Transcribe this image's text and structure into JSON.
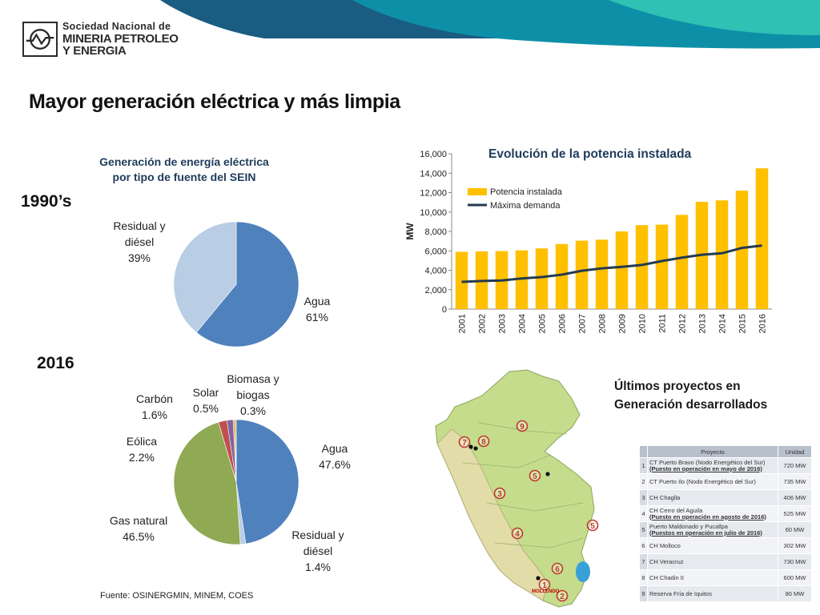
{
  "header": {
    "logo_line1": "Sociedad Nacional de",
    "logo_line2": "MINERIA PETROLEO",
    "logo_line3": "Y ENERGIA",
    "swoosh_colors": [
      "#1a5c82",
      "#0e8fa8",
      "#2fc1b4"
    ]
  },
  "title": "Mayor generación eléctrica y más limpia",
  "pie_section": {
    "title_line1": "Generación de energía eléctrica",
    "title_line2": "por tipo de fuente del SEIN",
    "era_1990": "1990’s",
    "era_2016": "2016"
  },
  "chart_data": [
    {
      "type": "pie",
      "title": "1990’s",
      "slices": [
        {
          "label": "Agua",
          "value": 61,
          "display": "61%",
          "color": "#4f81bd"
        },
        {
          "label": "Residual y diésel",
          "value": 39,
          "display": "39%",
          "color": "#b9cde5"
        }
      ]
    },
    {
      "type": "pie",
      "title": "2016",
      "slices": [
        {
          "label": "Agua",
          "value": 47.6,
          "display": "47.6%",
          "color": "#4f81bd"
        },
        {
          "label": "Residual y diésel",
          "value": 1.4,
          "display": "1.4%",
          "color": "#b9cde5"
        },
        {
          "label": "Gas natural",
          "value": 46.5,
          "display": "46.5%",
          "color": "#8faa52"
        },
        {
          "label": "Eólica",
          "value": 2.2,
          "display": "2.2%",
          "color": "#c0504d"
        },
        {
          "label": "Carbón",
          "value": 1.6,
          "display": "1.6%",
          "color": "#8064a2"
        },
        {
          "label": "Solar",
          "value": 0.5,
          "display": "0.5%",
          "color": "#f79646"
        },
        {
          "label": "Biomasa y biogas",
          "value": 0.3,
          "display": "0.3%",
          "color": "#9bbb59"
        }
      ]
    },
    {
      "type": "bar",
      "title": "Evolución de la potencia instalada",
      "ylabel": "MW",
      "ylim": [
        0,
        16000
      ],
      "yticks": [
        "0",
        "2,000",
        "4,000",
        "6,000",
        "8,000",
        "10,000",
        "12,000",
        "14,000",
        "16,000"
      ],
      "categories": [
        "2001",
        "2002",
        "2003",
        "2004",
        "2005",
        "2006",
        "2007",
        "2008",
        "2009",
        "2010",
        "2011",
        "2012",
        "2013",
        "2014",
        "2015",
        "2016"
      ],
      "series": [
        {
          "name": "Potencia instalada",
          "kind": "bar",
          "color": "#ffc000",
          "values": [
            5900,
            5950,
            5980,
            6050,
            6250,
            6700,
            7050,
            7150,
            8000,
            8650,
            8700,
            9700,
            11050,
            11200,
            12200,
            14500
          ]
        },
        {
          "name": "Máxima demanda",
          "kind": "line",
          "color": "#243a4e",
          "values": [
            2800,
            2900,
            2950,
            3150,
            3300,
            3550,
            3950,
            4200,
            4350,
            4550,
            4950,
            5300,
            5600,
            5750,
            6300,
            6550
          ]
        }
      ],
      "legend_position": "top-left"
    }
  ],
  "projects": {
    "title_line1": "Últimos proyectos en",
    "title_line2": "Generación desarrollados",
    "col_project": "Proyecto",
    "col_unit": "Unidad",
    "rows": [
      {
        "n": "1",
        "name": "CT Puerto Bravo (Nodo Energético del Sur)",
        "note": "(Puesto en operación en mayo de 2016)",
        "unit": "720 MW"
      },
      {
        "n": "2",
        "name": "CT Puerto Ilo (Nodo Energético del Sur)",
        "note": "",
        "unit": "735 MW"
      },
      {
        "n": "3",
        "name": "CH Chaglla",
        "note": "",
        "unit": "406 MW"
      },
      {
        "n": "4",
        "name": "CH Cerro del Aguila",
        "note": "(Puesto en operación en agosto de 2016)",
        "unit": "525 MW"
      },
      {
        "n": "5",
        "name": "Puerto Maldonado y Pucallpa",
        "note": "(Puestos en operación en julio de 2016)",
        "unit": "60 MW"
      },
      {
        "n": "6",
        "name": "CH Molloco",
        "note": "",
        "unit": "302 MW"
      },
      {
        "n": "7",
        "name": "CH Veracruz",
        "note": "",
        "unit": "730 MW"
      },
      {
        "n": "8",
        "name": "CH Chadin II",
        "note": "",
        "unit": "600 MW"
      },
      {
        "n": "9",
        "name": "Reserva Fría de Iquitos",
        "note": "",
        "unit": "80 MW"
      }
    ]
  },
  "map": {
    "markers": [
      "7",
      "8",
      "9",
      "5",
      "3",
      "5",
      "4",
      "6",
      "1",
      "2"
    ],
    "city_label": "MOLLENDO",
    "land_color": "#c4dc8c",
    "coast_color": "#e2dca8"
  },
  "source": "Fuente: OSINERGMIN, MINEM, COES"
}
